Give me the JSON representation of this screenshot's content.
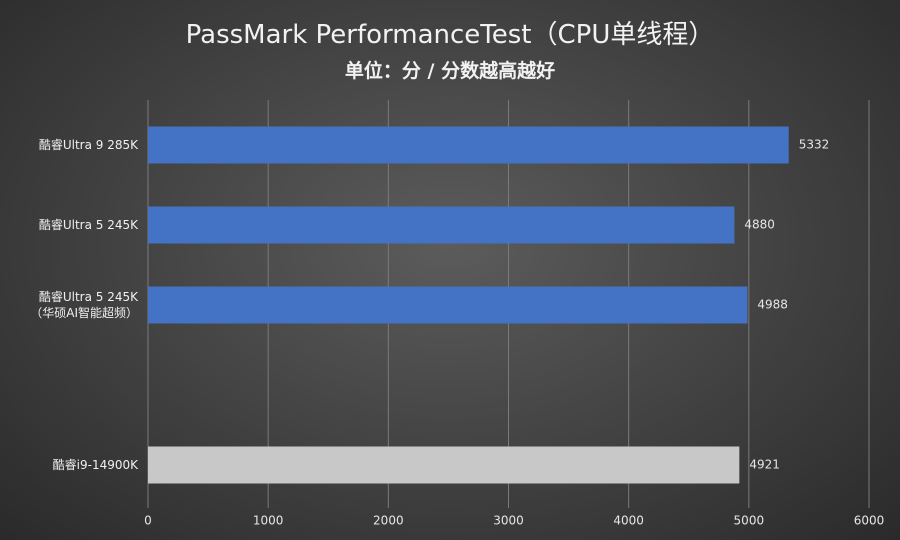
{
  "chart_data": {
    "type": "bar",
    "orientation": "horizontal",
    "title": "PassMark PerformanceTest（CPU单线程）",
    "subtitle": "单位：分 / 分数越高越好",
    "categories": [
      "酷睿Ultra 9 285K",
      "酷睿Ultra 5 245K",
      "酷睿Ultra 5 245K\n（华硕AI智能超频）",
      null,
      "酷睿i9-14900K"
    ],
    "values": [
      5332,
      4880,
      4988,
      null,
      4921
    ],
    "colors": [
      "#4472c4",
      "#4472c4",
      "#4472c4",
      null,
      "#c8c8c8"
    ],
    "xlim": [
      0,
      6000
    ],
    "xticks": [
      0,
      1000,
      2000,
      3000,
      4000,
      5000,
      6000
    ],
    "grid": true
  }
}
